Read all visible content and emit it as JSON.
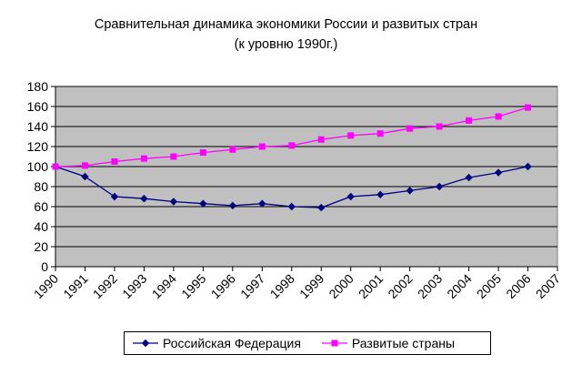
{
  "chart_data": {
    "type": "line",
    "title": "Сравнительная динамика экономики России и развитых стран",
    "subtitle": "(к уровню 1990г.)",
    "xlabel": "",
    "ylabel": "",
    "categories": [
      "1990",
      "1991",
      "1992",
      "1993",
      "1994",
      "1995",
      "1996",
      "1997",
      "1998",
      "1999",
      "2000",
      "2001",
      "2002",
      "2003",
      "2004",
      "2005",
      "2006",
      "2007"
    ],
    "ylim": [
      0,
      180
    ],
    "yticks": [
      0,
      20,
      40,
      60,
      80,
      100,
      120,
      140,
      160,
      180
    ],
    "grid": true,
    "legend_position": "bottom",
    "plot_background": "#c0c0c0",
    "series": [
      {
        "name": "Российская Федерация",
        "color": "#000080",
        "marker": "diamond",
        "values": [
          100,
          90,
          70,
          68,
          65,
          63,
          61,
          63,
          60,
          59,
          70,
          72,
          76,
          80,
          89,
          94,
          100,
          null
        ]
      },
      {
        "name": "Развитые страны",
        "color": "#ff00ff",
        "marker": "square",
        "values": [
          100,
          101,
          105,
          108,
          110,
          114,
          117,
          120,
          121,
          127,
          131,
          133,
          138,
          140,
          146,
          150,
          159,
          null
        ]
      }
    ]
  }
}
